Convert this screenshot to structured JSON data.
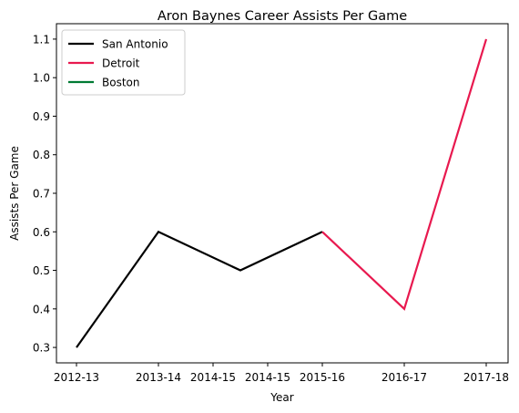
{
  "chart_data": {
    "type": "line",
    "title": "Aron Baynes Career Assists Per Game",
    "xlabel": "Year",
    "ylabel": "Assists Per Game",
    "x_tick_labels": [
      "2012-13",
      "2013-14",
      "2014-15",
      "2014-15",
      "2015-16",
      "2016-17",
      "2017-18"
    ],
    "y_ticks": [
      0.3,
      0.4,
      0.5,
      0.6,
      0.7,
      0.8,
      0.9,
      1.0,
      1.1
    ],
    "y_tick_labels": [
      "0.3",
      "0.4",
      "0.5",
      "0.6",
      "0.7",
      "0.8",
      "0.9",
      "1.0",
      "1.1"
    ],
    "ylim": [
      0.26,
      1.14
    ],
    "legend_position": "top-left",
    "grid": false,
    "series": [
      {
        "name": "San Antonio",
        "color": "#000000",
        "points": [
          [
            "2012-13",
            0.3
          ],
          [
            "2013-14",
            0.6
          ],
          [
            "2014-15",
            0.5
          ],
          [
            "2015-16",
            0.6
          ]
        ]
      },
      {
        "name": "Detroit",
        "color": "#e8194f",
        "points": [
          [
            "2015-16",
            0.6
          ],
          [
            "2016-17",
            0.4
          ],
          [
            "2017-18",
            1.1
          ]
        ]
      },
      {
        "name": "Boston",
        "color": "#007a33",
        "points": []
      }
    ]
  }
}
